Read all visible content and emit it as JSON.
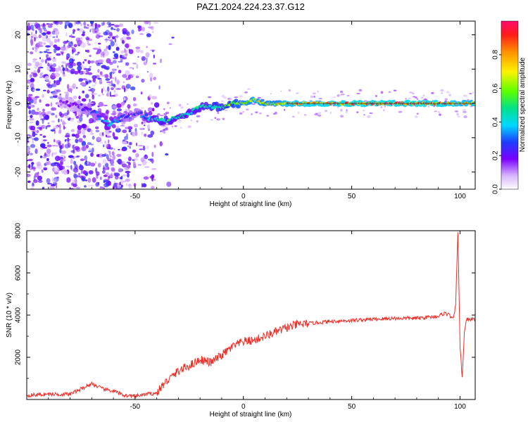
{
  "title": "PAZ1.2024.224.23.37.G12",
  "top_panel": {
    "xlabel": "Height of straight line (km)",
    "ylabel": "Frequency (Hz)",
    "xlim": [
      -100,
      107
    ],
    "ylim": [
      -25,
      24
    ],
    "xticks": [
      -50,
      0,
      50,
      100
    ],
    "yticks": [
      -20,
      -10,
      0,
      10,
      20
    ],
    "colorbar": {
      "label": "Normalized spectral amplitude",
      "range": [
        0,
        1
      ],
      "ticks": [
        "0.0",
        "0.2",
        "0.4",
        "0.6",
        "0.8"
      ],
      "tick_values": [
        0.0,
        0.2,
        0.4,
        0.6,
        0.8
      ]
    }
  },
  "chart_data": [
    {
      "type": "heatmap",
      "xlabel": "Height of straight line (km)",
      "ylabel": "Frequency (Hz)",
      "xlim": [
        -100,
        107
      ],
      "ylim": [
        -25,
        24
      ],
      "xticks": [
        -50,
        0,
        50,
        100
      ],
      "yticks": [
        -20,
        -10,
        0,
        10,
        20
      ],
      "signal_ridge": {
        "x": [
          -80,
          -70,
          -62,
          -55,
          -48,
          -40,
          -35,
          -30,
          -25,
          -20,
          -15,
          -10,
          -5,
          0,
          5,
          10,
          15,
          20,
          30,
          50,
          70,
          90,
          100,
          107
        ],
        "y": [
          0,
          -2,
          -6,
          -4,
          -3,
          -5,
          -5,
          -4,
          -3,
          -1,
          -1,
          -1,
          0,
          0,
          1,
          0,
          0,
          0,
          0,
          0,
          0,
          0,
          0,
          0
        ],
        "amplitude": [
          0.2,
          0.3,
          0.45,
          0.3,
          0.3,
          0.5,
          0.55,
          0.5,
          0.5,
          0.55,
          0.6,
          0.65,
          0.7,
          0.8,
          0.85,
          0.8,
          0.8,
          0.9,
          0.95,
          1.0,
          1.0,
          1.0,
          0.9,
          0.9
        ]
      },
      "colorscale": "rainbow"
    },
    {
      "type": "line",
      "xlabel": "Height of straight line (km)",
      "ylabel": "SNR (10 * v/v)",
      "xlim": [
        -100,
        107
      ],
      "ylim": [
        0,
        8000
      ],
      "xticks": [
        -50,
        0,
        50,
        100
      ],
      "yticks": [
        2000,
        4000,
        6000,
        8000
      ],
      "series": [
        {
          "color": "#e8302a",
          "x": [
            -100,
            -90,
            -80,
            -75,
            -70,
            -65,
            -60,
            -55,
            -50,
            -45,
            -40,
            -37,
            -35,
            -30,
            -25,
            -20,
            -15,
            -10,
            -5,
            0,
            5,
            10,
            15,
            20,
            25,
            30,
            35,
            40,
            50,
            60,
            70,
            80,
            90,
            93,
            95,
            97,
            98,
            99,
            100,
            101,
            102,
            103,
            105,
            107
          ],
          "values": [
            200,
            250,
            250,
            500,
            750,
            500,
            400,
            200,
            150,
            250,
            300,
            700,
            900,
            1350,
            1600,
            1900,
            1750,
            2100,
            2500,
            2750,
            2800,
            3000,
            3200,
            3400,
            3550,
            3600,
            3650,
            3700,
            3750,
            3800,
            3850,
            3850,
            3950,
            4100,
            4000,
            3800,
            4500,
            8000,
            2500,
            1000,
            3200,
            3800,
            3800,
            3800
          ]
        }
      ]
    }
  ]
}
